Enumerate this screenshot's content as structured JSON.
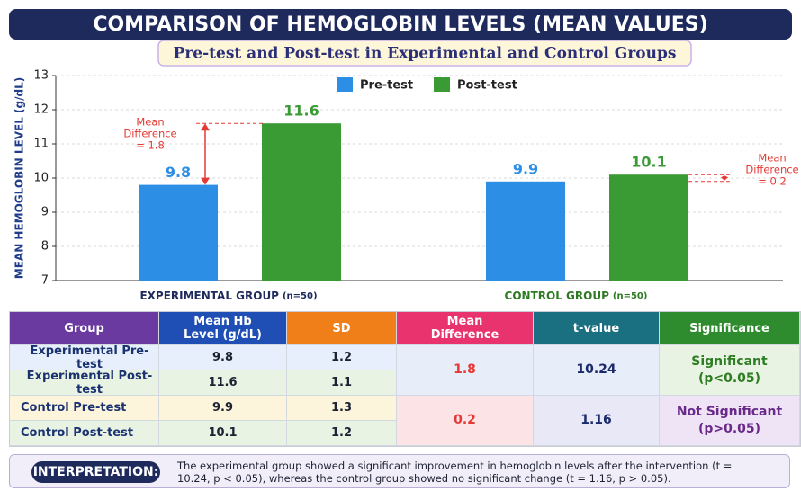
{
  "chart_data": {
    "type": "bar",
    "title": "COMPARISON OF HEMOGLOBIN LEVELS (MEAN VALUES)",
    "subtitle": "Pre-test and Post-test in Experimental and Control Groups",
    "y_label": "MEAN HEMOGLOBIN LEVEL (g/dL)",
    "categories": [
      "EXPERIMENTAL GROUP",
      "CONTROL GROUP"
    ],
    "category_notes": [
      "(n=50)",
      "(n=50)"
    ],
    "series": [
      {
        "name": "Pre-test",
        "color": "#2d8ee6",
        "values": [
          9.8,
          9.9
        ]
      },
      {
        "name": "Post-test",
        "color": "#3a9a34",
        "values": [
          11.6,
          10.1
        ]
      }
    ],
    "ylim": [
      7,
      13
    ],
    "yticks": [
      7,
      8,
      9,
      10,
      11,
      12,
      13
    ],
    "grid": true,
    "legend": "top",
    "annotations": [
      {
        "lines": [
          "Mean",
          "Difference",
          "= 1.8"
        ]
      },
      {
        "lines": [
          "Mean",
          "Difference",
          "= 0.2"
        ]
      }
    ]
  },
  "table": {
    "header": [
      "Group",
      "Mean Hb Level (g/dL)",
      "SD",
      "Mean Difference",
      "t-value",
      "Significance"
    ],
    "rows": [
      [
        "Experimental Pre-test",
        9.8,
        1.2
      ],
      [
        "Experimental Post-test",
        11.6,
        1.1
      ],
      [
        "Control Pre-test",
        9.9,
        1.3
      ],
      [
        "Control Post-test",
        10.1,
        1.2
      ]
    ],
    "pairs": [
      {
        "mean_difference": 1.8,
        "t_value": 10.24,
        "significance": "Significant",
        "p": "(p<0.05)"
      },
      {
        "mean_difference": 0.2,
        "t_value": 1.16,
        "significance": "Not Significant",
        "p": "(p>0.05)"
      }
    ]
  },
  "interpretation": {
    "label": "INTERPRETATION:",
    "text": "The experimental group showed a significant improvement in hemoglobin levels after the intervention (t = 10.24, p < 0.05), whereas the control group showed no significant change (t = 1.16, p > 0.05)."
  }
}
